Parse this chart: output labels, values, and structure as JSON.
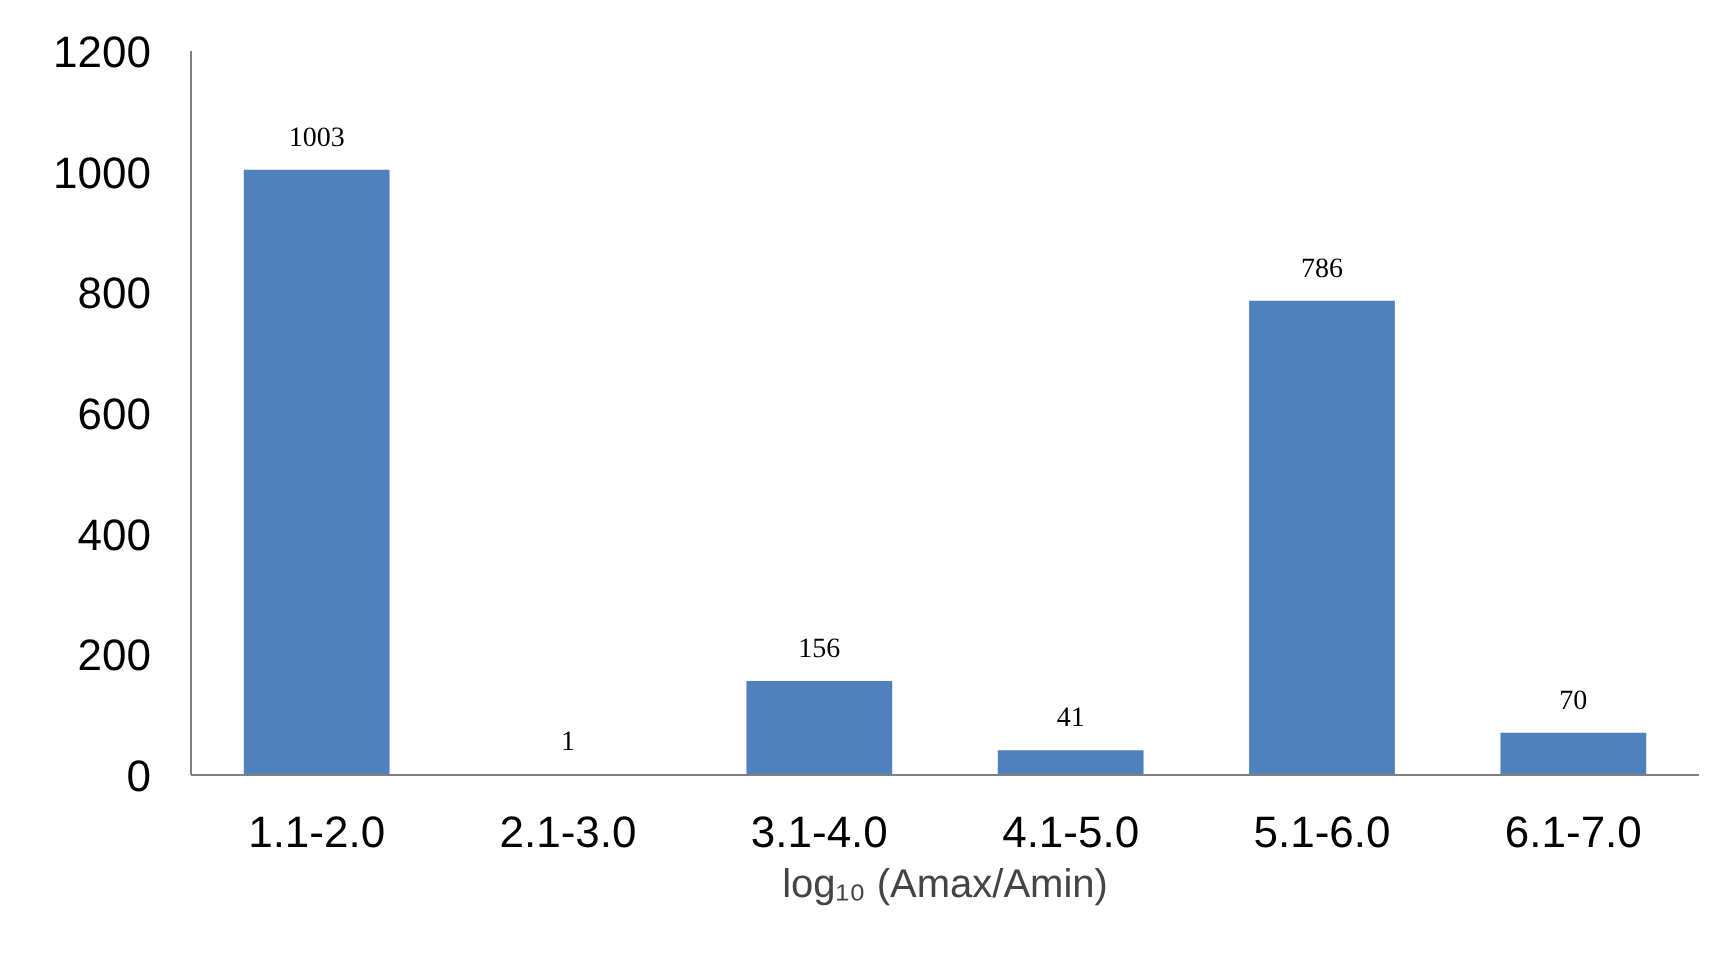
{
  "chart_data": {
    "type": "bar",
    "xlabel": "log₁₀ (Amax/Amin)",
    "categories": [
      "1.1-2.0",
      "2.1-3.0",
      "3.1-4.0",
      "4.1-5.0",
      "5.1-6.0",
      "6.1-7.0"
    ],
    "values": [
      1003,
      1,
      156,
      41,
      786,
      70
    ],
    "color": "#4f81bd",
    "ylim": [
      0,
      1200
    ],
    "yticks": [
      0,
      200,
      400,
      600,
      800,
      1000,
      1200
    ],
    "grid": false,
    "data_labels": true
  }
}
